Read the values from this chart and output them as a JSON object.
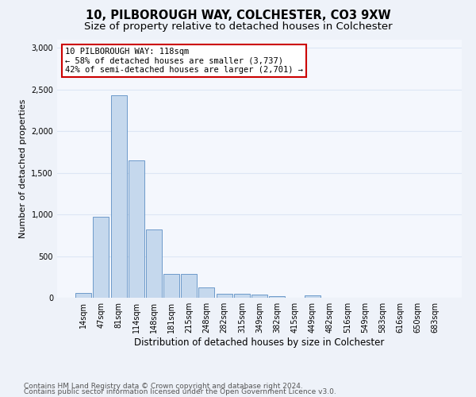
{
  "title": "10, PILBOROUGH WAY, COLCHESTER, CO3 9XW",
  "subtitle": "Size of property relative to detached houses in Colchester",
  "xlabel": "Distribution of detached houses by size in Colchester",
  "ylabel": "Number of detached properties",
  "categories": [
    "14sqm",
    "47sqm",
    "81sqm",
    "114sqm",
    "148sqm",
    "181sqm",
    "215sqm",
    "248sqm",
    "282sqm",
    "315sqm",
    "349sqm",
    "382sqm",
    "415sqm",
    "449sqm",
    "482sqm",
    "516sqm",
    "549sqm",
    "583sqm",
    "616sqm",
    "650sqm",
    "683sqm"
  ],
  "values": [
    55,
    975,
    2430,
    1650,
    820,
    285,
    285,
    125,
    50,
    45,
    35,
    20,
    0,
    30,
    0,
    0,
    0,
    0,
    0,
    0,
    0
  ],
  "bar_color": "#c5d8ed",
  "bar_edge_color": "#5b8ec4",
  "annotation_text": "10 PILBOROUGH WAY: 118sqm\n← 58% of detached houses are smaller (3,737)\n42% of semi-detached houses are larger (2,701) →",
  "annotation_box_color": "#ffffff",
  "annotation_box_edge_color": "#cc0000",
  "ylim": [
    0,
    3100
  ],
  "yticks": [
    0,
    500,
    1000,
    1500,
    2000,
    2500,
    3000
  ],
  "bg_color": "#eef2f9",
  "plot_bg_color": "#f4f7fd",
  "grid_color": "#dde6f5",
  "footer_line1": "Contains HM Land Registry data © Crown copyright and database right 2024.",
  "footer_line2": "Contains public sector information licensed under the Open Government Licence v3.0.",
  "title_fontsize": 10.5,
  "subtitle_fontsize": 9.5,
  "xlabel_fontsize": 8.5,
  "ylabel_fontsize": 8,
  "tick_fontsize": 7,
  "footer_fontsize": 6.5,
  "annotation_fontsize": 7.5
}
